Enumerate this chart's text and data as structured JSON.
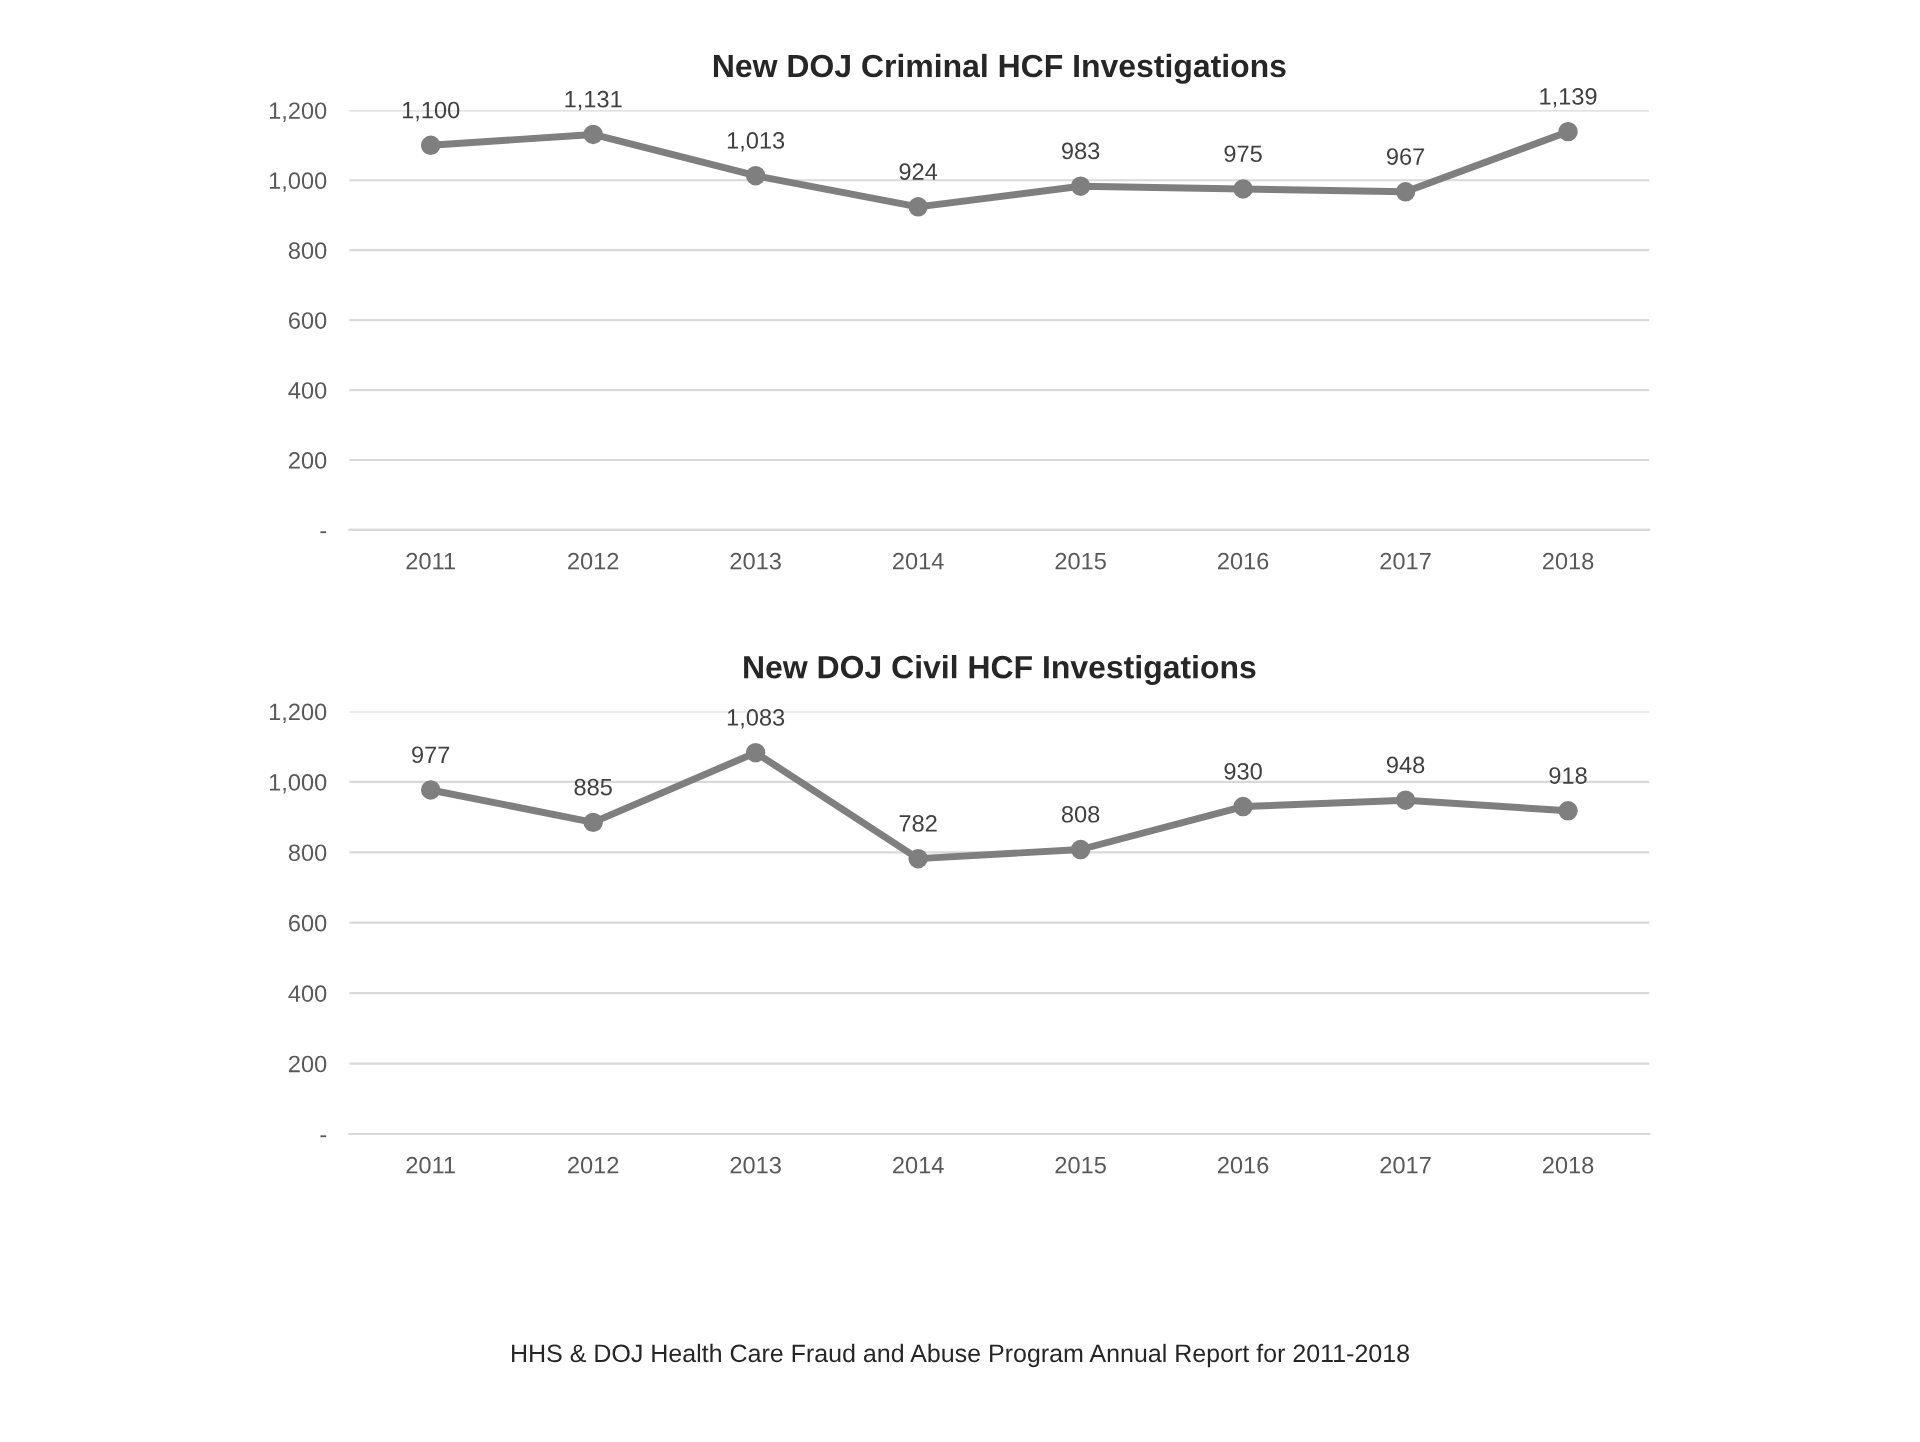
{
  "chart_data": [
    {
      "type": "line",
      "title": "New DOJ Criminal HCF Investigations",
      "categories": [
        "2011",
        "2012",
        "2013",
        "2014",
        "2015",
        "2016",
        "2017",
        "2018"
      ],
      "series": [
        {
          "color": "#7f7f7f",
          "values": [
            1100,
            1131,
            1013,
            924,
            983,
            975,
            967,
            1139
          ],
          "value_labels": [
            "1,100",
            "1,131",
            "1,013",
            "924",
            "983",
            "975",
            "967",
            "1,139"
          ]
        }
      ],
      "ylim": [
        0,
        1200
      ],
      "yticks": [
        {
          "value": 0,
          "label": "-"
        },
        200,
        400,
        600,
        800,
        {
          "value": 1000,
          "label": "1,000"
        },
        {
          "value": 1200,
          "label": "1,200"
        }
      ],
      "grid": "y",
      "marker": "circle",
      "line_style": "solid",
      "legend": false
    },
    {
      "type": "line",
      "title": "New DOJ Civil HCF Investigations",
      "categories": [
        "2011",
        "2012",
        "2013",
        "2014",
        "2015",
        "2016",
        "2017",
        "2018"
      ],
      "series": [
        {
          "color": "#7f7f7f",
          "values": [
            977,
            885,
            1083,
            782,
            808,
            930,
            948,
            918
          ],
          "value_labels": [
            "977",
            "885",
            "1,083",
            "782",
            "808",
            "930",
            "948",
            "918"
          ]
        }
      ],
      "ylim": [
        0,
        1200
      ],
      "yticks": [
        {
          "value": 0,
          "label": "-"
        },
        200,
        400,
        600,
        800,
        {
          "value": 1000,
          "label": "1,000"
        },
        {
          "value": 1200,
          "label": "1,200"
        }
      ],
      "grid": "y",
      "marker": "circle",
      "line_style": "solid",
      "legend": false,
      "annotations": [
        "HHS & DOJ Health Care Fraud and Abuse Program Annual Report for 2011-2018"
      ]
    }
  ]
}
